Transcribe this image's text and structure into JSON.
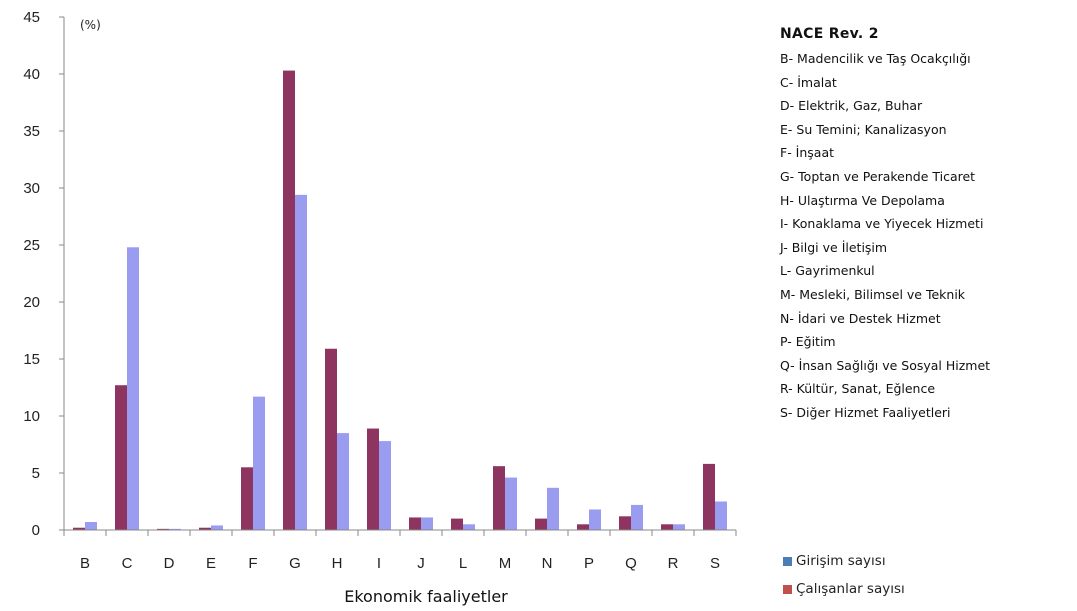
{
  "chart_data": {
    "type": "bar",
    "unit_label": "(%)",
    "xlabel": "Ekonomik faaliyetler",
    "ylabel": "",
    "ylim": [
      0,
      45
    ],
    "yticks": [
      0,
      5,
      10,
      15,
      20,
      25,
      30,
      35,
      40,
      45
    ],
    "grid": false,
    "legend_position": "bottom-right",
    "categories": [
      "B",
      "C",
      "D",
      "E",
      "F",
      "G",
      "H",
      "I",
      "J",
      "L",
      "M",
      "N",
      "P",
      "Q",
      "R",
      "S"
    ],
    "series": [
      {
        "name": "Çalışanlar sayısı",
        "color": "#8e3461",
        "values": [
          0.2,
          12.7,
          0.1,
          0.2,
          5.5,
          40.3,
          15.9,
          8.9,
          1.1,
          1.0,
          5.6,
          1.0,
          0.5,
          1.2,
          0.5,
          5.8
        ]
      },
      {
        "name": "Girişim sayısı",
        "color": "#9a9cf0",
        "values": [
          0.7,
          24.8,
          0.1,
          0.4,
          11.7,
          29.4,
          8.5,
          7.8,
          1.1,
          0.5,
          4.6,
          3.7,
          1.8,
          2.2,
          0.5,
          2.5
        ]
      }
    ]
  },
  "nace": {
    "title": "NACE Rev. 2",
    "items": [
      "B- Madencilik ve Taş Ocakçılığı",
      "C- İmalat",
      "D- Elektrik, Gaz, Buhar",
      "E- Su Temini; Kanalizasyon",
      "F- İnşaat",
      "G- Toptan ve Perakende Ticaret",
      "H- Ulaştırma Ve Depolama",
      "I- Konaklama ve Yiyecek Hizmeti",
      "J- Bilgi ve İletişim",
      "L- Gayrimenkul",
      "M- Mesleki, Bilimsel ve Teknik",
      "N- İdari ve Destek Hizmet",
      "P- Eğitim",
      "Q- İnsan Sağlığı ve Sosyal Hizmet",
      "R- Kültür, Sanat, Eğlence",
      "S- Diğer Hizmet Faaliyetleri"
    ]
  },
  "legend": {
    "items": [
      {
        "label": "Girişim sayısı",
        "color": "#4a7fb5"
      },
      {
        "label": "Çalışanlar sayısı",
        "color": "#c0504d"
      }
    ]
  }
}
